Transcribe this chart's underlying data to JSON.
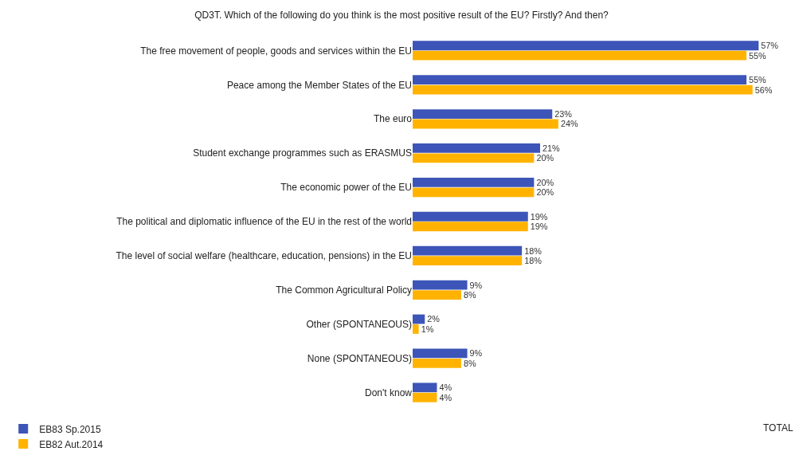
{
  "chart_data": {
    "type": "bar",
    "orientation": "horizontal",
    "title": "QD3T. Which of the following do you think is the most positive result of the EU? Firstly? And then?",
    "categories": [
      "The free movement of people, goods and services within the EU",
      "Peace among the Member States of the EU",
      "The euro",
      "Student exchange programmes such as ERASMUS",
      "The economic power of the EU",
      "The political and diplomatic influence of the EU in the rest of the world",
      "The level of social welfare (healthcare, education, pensions) in the EU",
      "The Common Agricultural Policy",
      "Other (SPONTANEOUS)",
      "None (SPONTANEOUS)",
      "Don't know"
    ],
    "series": [
      {
        "name": "EB83 Sp.2015",
        "color": "#3d55b8",
        "values": [
          57,
          55,
          23,
          21,
          20,
          19,
          18,
          9,
          2,
          9,
          4
        ],
        "value_labels": [
          "57%",
          "55%",
          "23%",
          "21%",
          "20%",
          "19%",
          "18%",
          "9%",
          "2%",
          "9%",
          "4%"
        ]
      },
      {
        "name": "EB82 Aut.2014",
        "color": "#ffb300",
        "values": [
          55,
          56,
          24,
          20,
          20,
          19,
          18,
          8,
          1,
          8,
          4
        ],
        "value_labels": [
          "55%",
          "56%",
          "24%",
          "20%",
          "20%",
          "19%",
          "18%",
          "8%",
          "1%",
          "8%",
          "4%"
        ]
      }
    ],
    "annotations": [
      "TOTAL"
    ],
    "legend": "bottom left",
    "grid": false
  }
}
